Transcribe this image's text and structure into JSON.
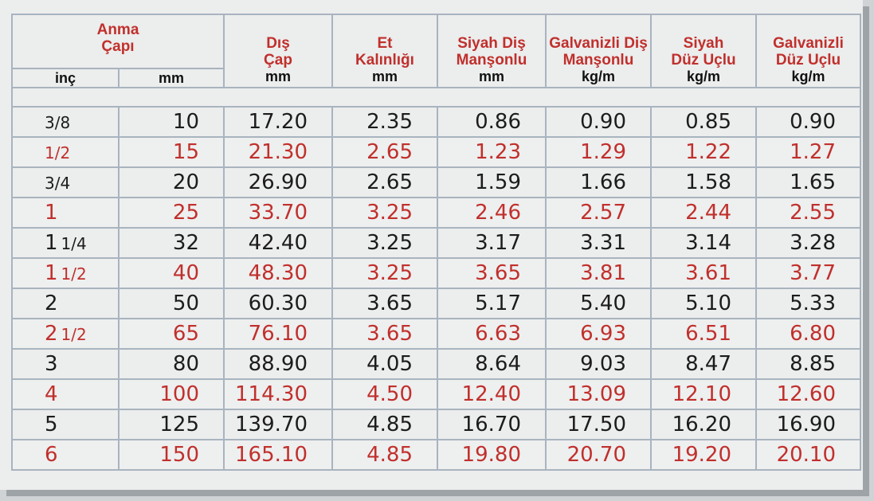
{
  "header": {
    "anma_capi": [
      "Anma",
      "Çapı"
    ],
    "dis_cap": [
      "Dış",
      "Çap"
    ],
    "et_kalinligi": [
      "Et",
      "Kalınlığı"
    ],
    "siyah_dis_mansonlu": [
      "Siyah Diş",
      "Manşonlu"
    ],
    "galvanizli_dis_mansonlu": [
      "Galvanizli Diş",
      "Manşonlu"
    ],
    "siyah_duz_uclu": [
      "Siyah",
      "Düz Uçlu"
    ],
    "galvanizli_duz_uclu": [
      "Galvanizli",
      "Düz Uçlu"
    ],
    "units": {
      "inc": "inç",
      "mm": "mm",
      "dis_cap": "mm",
      "et_kalinligi": "mm",
      "siyah_dis_mansonlu": "mm",
      "galvanizli_dis_mansonlu": "kg/m",
      "siyah_duz_uclu": "kg/m",
      "galvanizli_duz_uclu": "kg/m"
    }
  },
  "colors": {
    "red": "#c0302c",
    "black": "#1c1c1c",
    "grid": "#a8b4bf"
  },
  "rows": [
    {
      "whole": "",
      "frac": "3/8",
      "mm": "10",
      "dis_cap": "17.20",
      "et": "2.35",
      "sdm": "0.86",
      "gdm": "0.90",
      "sdu": "0.85",
      "gdu": "0.90",
      "color": "black"
    },
    {
      "whole": "",
      "frac": "1/2",
      "mm": "15",
      "dis_cap": "21.30",
      "et": "2.65",
      "sdm": "1.23",
      "gdm": "1.29",
      "sdu": "1.22",
      "gdu": "1.27",
      "color": "red"
    },
    {
      "whole": "",
      "frac": "3/4",
      "mm": "20",
      "dis_cap": "26.90",
      "et": "2.65",
      "sdm": "1.59",
      "gdm": "1.66",
      "sdu": "1.58",
      "gdu": "1.65",
      "color": "black"
    },
    {
      "whole": "1",
      "frac": "",
      "mm": "25",
      "dis_cap": "33.70",
      "et": "3.25",
      "sdm": "2.46",
      "gdm": "2.57",
      "sdu": "2.44",
      "gdu": "2.55",
      "color": "red"
    },
    {
      "whole": "1",
      "frac": "1/4",
      "mm": "32",
      "dis_cap": "42.40",
      "et": "3.25",
      "sdm": "3.17",
      "gdm": "3.31",
      "sdu": "3.14",
      "gdu": "3.28",
      "color": "black"
    },
    {
      "whole": "1",
      "frac": "1/2",
      "mm": "40",
      "dis_cap": "48.30",
      "et": "3.25",
      "sdm": "3.65",
      "gdm": "3.81",
      "sdu": "3.61",
      "gdu": "3.77",
      "color": "red"
    },
    {
      "whole": "2",
      "frac": "",
      "mm": "50",
      "dis_cap": "60.30",
      "et": "3.65",
      "sdm": "5.17",
      "gdm": "5.40",
      "sdu": "5.10",
      "gdu": "5.33",
      "color": "black"
    },
    {
      "whole": "2",
      "frac": "1/2",
      "mm": "65",
      "dis_cap": "76.10",
      "et": "3.65",
      "sdm": "6.63",
      "gdm": "6.93",
      "sdu": "6.51",
      "gdu": "6.80",
      "color": "red"
    },
    {
      "whole": "3",
      "frac": "",
      "mm": "80",
      "dis_cap": "88.90",
      "et": "4.05",
      "sdm": "8.64",
      "gdm": "9.03",
      "sdu": "8.47",
      "gdu": "8.85",
      "color": "black"
    },
    {
      "whole": "4",
      "frac": "",
      "mm": "100",
      "dis_cap": "114.30",
      "et": "4.50",
      "sdm": "12.40",
      "gdm": "13.09",
      "sdu": "12.10",
      "gdu": "12.60",
      "color": "red"
    },
    {
      "whole": "5",
      "frac": "",
      "mm": "125",
      "dis_cap": "139.70",
      "et": "4.85",
      "sdm": "16.70",
      "gdm": "17.50",
      "sdu": "16.20",
      "gdu": "16.90",
      "color": "black"
    },
    {
      "whole": "6",
      "frac": "",
      "mm": "150",
      "dis_cap": "165.10",
      "et": "4.85",
      "sdm": "19.80",
      "gdm": "20.70",
      "sdu": "19.20",
      "gdu": "20.10",
      "color": "red"
    }
  ]
}
